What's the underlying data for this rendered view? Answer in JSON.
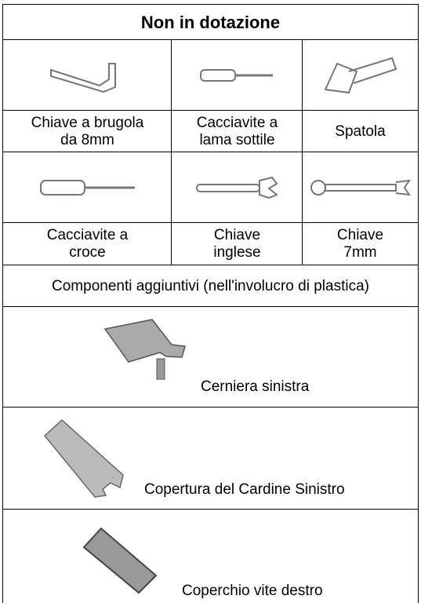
{
  "header": {
    "title": "Non in dotazione"
  },
  "tools": [
    {
      "label": [
        "Chiave a brugola",
        "da 8mm"
      ]
    },
    {
      "label": [
        "Cacciavite a",
        "lama sottile"
      ]
    },
    {
      "label": [
        "Spatola"
      ]
    },
    {
      "label": [
        "Cacciavite a",
        "croce"
      ]
    },
    {
      "label": [
        "Chiave",
        "inglese"
      ]
    },
    {
      "label": [
        "Chiave",
        "7mm"
      ]
    }
  ],
  "section": {
    "title": "Componenti aggiuntivi (nell'involucro di plastica)"
  },
  "components": [
    {
      "label": "Cerniera sinistra"
    },
    {
      "label": "Copertura del Cardine Sinistro"
    },
    {
      "label": "Coperchio vite destro"
    }
  ]
}
